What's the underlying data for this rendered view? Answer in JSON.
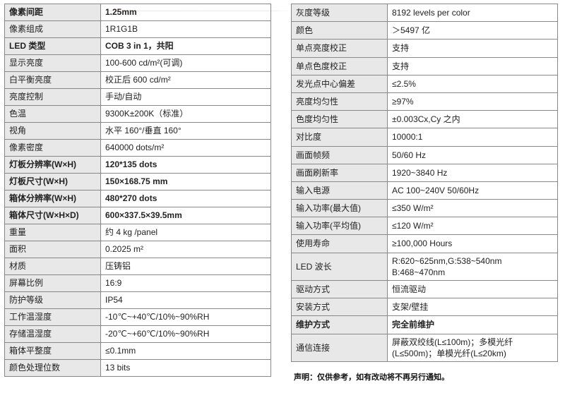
{
  "table1": {
    "rows": [
      {
        "label": "像素间距",
        "value": "1.25mm",
        "bold": true
      },
      {
        "label": "像素组成",
        "value": "1R1G1B",
        "bold": false
      },
      {
        "label": "LED 类型",
        "value": "COB 3 in 1，共阳",
        "bold": true
      },
      {
        "label": "显示亮度",
        "value": "100-600 cd/m²(可调)",
        "bold": false
      },
      {
        "label": "白平衡亮度",
        "value": "校正后 600 cd/m²",
        "bold": false
      },
      {
        "label": "亮度控制",
        "value": "手动/自动",
        "bold": false
      },
      {
        "label": "色温",
        "value": "9300K±200K（标准）",
        "bold": false
      },
      {
        "label": "视角",
        "value": "水平 160°/垂直 160°",
        "bold": false
      },
      {
        "label": "像素密度",
        "value": "640000 dots/m²",
        "bold": false
      },
      {
        "label": "灯板分辨率(W×H)",
        "value": "120*135 dots",
        "bold": true
      },
      {
        "label": "灯板尺寸(W×H)",
        "value": "150×168.75 mm",
        "bold": true
      },
      {
        "label": "箱体分辨率(W×H)",
        "value": "480*270 dots",
        "bold": true
      },
      {
        "label": "箱体尺寸(W×H×D)",
        "value": "600×337.5×39.5mm",
        "bold": true
      },
      {
        "label": "重量",
        "value": "约 4 kg /panel",
        "bold": false
      },
      {
        "label": "面积",
        "value": "0.2025 m²",
        "bold": false
      },
      {
        "label": "材质",
        "value": "压铸铝",
        "bold": false
      },
      {
        "label": "屏幕比例",
        "value": "16:9",
        "bold": false
      },
      {
        "label": "防护等级",
        "value": "IP54",
        "bold": false
      },
      {
        "label": "工作温湿度",
        "value": "-10℃~+40℃/10%~90%RH",
        "bold": false
      },
      {
        "label": "存储温湿度",
        "value": "-20℃~+60℃/10%~90%RH",
        "bold": false
      },
      {
        "label": "箱体平整度",
        "value": "≤0.1mm",
        "bold": false
      },
      {
        "label": "颜色处理位数",
        "value": "13 bits",
        "bold": false
      }
    ]
  },
  "table2": {
    "rows": [
      {
        "label": "灰度等级",
        "value": "8192 levels per color",
        "bold": false,
        "tall": false
      },
      {
        "label": "颜色",
        "value": "＞5497 亿",
        "bold": false,
        "tall": false
      },
      {
        "label": "单点亮度校正",
        "value": "支持",
        "bold": false,
        "tall": false
      },
      {
        "label": "单点色度校正",
        "value": "支持",
        "bold": false,
        "tall": false
      },
      {
        "label": "发光点中心偏差",
        "value": "≤2.5%",
        "bold": false,
        "tall": false
      },
      {
        "label": "亮度均匀性",
        "value": "≥97%",
        "bold": false,
        "tall": false
      },
      {
        "label": "色度均匀性",
        "value": "±0.003Cx,Cy 之内",
        "bold": false,
        "tall": false
      },
      {
        "label": "对比度",
        "value": "10000:1",
        "bold": false,
        "tall": false
      },
      {
        "label": "画面帧频",
        "value": "50/60 Hz",
        "bold": false,
        "tall": false
      },
      {
        "label": "画面刷新率",
        "value": "1920~3840 Hz",
        "bold": false,
        "tall": false
      },
      {
        "label": "输入电源",
        "value": "AC 100~240V 50/60Hz",
        "bold": false,
        "tall": false
      },
      {
        "label": "输入功率(最大值)",
        "value": "≤350 W/m²",
        "bold": false,
        "tall": false
      },
      {
        "label": "输入功率(平均值)",
        "value": "≤120 W/m²",
        "bold": false,
        "tall": false
      },
      {
        "label": "使用寿命",
        "value": "≥100,000 Hours",
        "bold": false,
        "tall": false
      },
      {
        "label": "LED 波长",
        "value": "R:620~625nm,G:538~540nm B:468~470nm",
        "bold": false,
        "tall": true
      },
      {
        "label": "驱动方式",
        "value": "恒流驱动",
        "bold": false,
        "tall": false
      },
      {
        "label": "安装方式",
        "value": "支架/壁挂",
        "bold": false,
        "tall": false
      },
      {
        "label": "维护方式",
        "value": "完全前维护",
        "bold": true,
        "tall": false
      },
      {
        "label": "通信连接",
        "value": "屏蔽双绞线(L≤100m)；多模光纤(L≤500m)；单模光纤(L≤20km)",
        "bold": false,
        "tall": true
      }
    ]
  },
  "disclaimer": "声明：仅供参考，如有改动将不再另行通知。",
  "colors": {
    "label_bg": "#e8e8e8",
    "border": "#888888",
    "connector": "#ff0000"
  }
}
